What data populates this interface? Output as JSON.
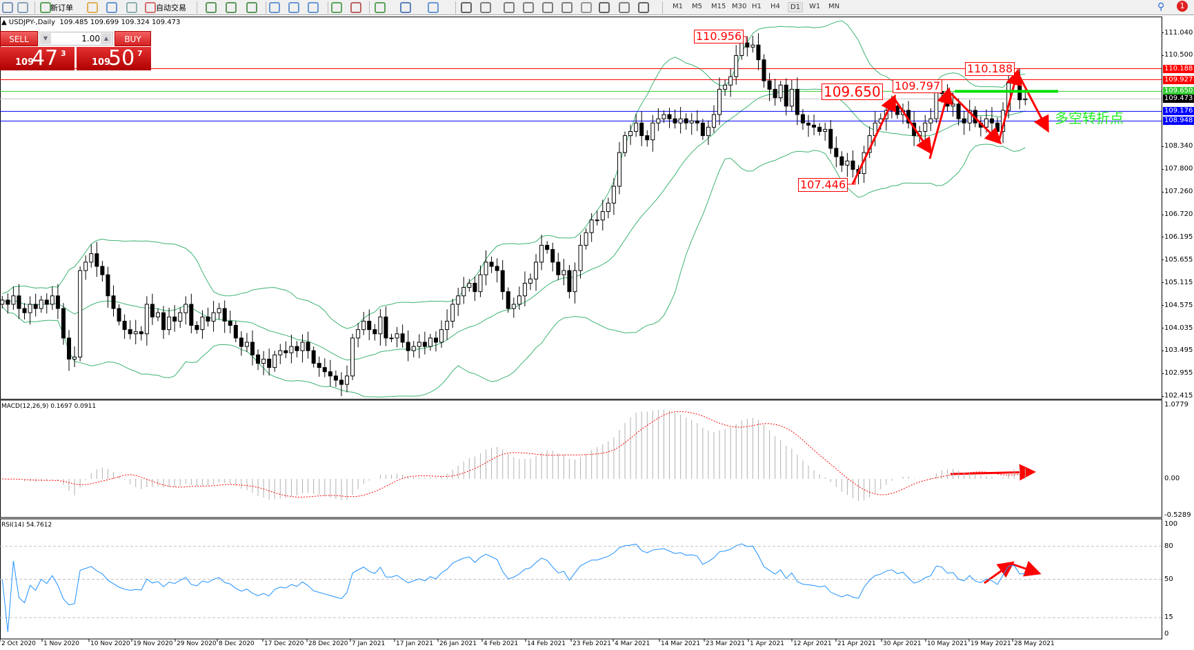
{
  "toolbar": {
    "new_order_label": "新订单",
    "auto_trade_label": "自动交易",
    "icons": [
      "chart-icon",
      "zoom-search-icon",
      "new-order-icon",
      "market-watch-icon",
      "navigator-icon",
      "signal-icon",
      "auto-trade-icon",
      "bar-chart-icon",
      "candlestick-icon",
      "line-chart-icon",
      "zoom-in-icon",
      "zoom-out-icon",
      "tile-windows-icon",
      "chart-shift-icon",
      "autoscroll-icon",
      "indicators-icon",
      "periods-icon",
      "templates-icon",
      "cursor-icon",
      "crosshair-icon",
      "vertical-line-icon",
      "horizontal-line-icon",
      "trendline-icon",
      "fibonacci-fan-icon",
      "fibonacci-icon",
      "text-icon",
      "text-label-icon",
      "arrows-icon"
    ],
    "timeframes": [
      "M1",
      "M5",
      "M15",
      "M30",
      "H1",
      "H4",
      "D1",
      "W1",
      "MN"
    ],
    "active_timeframe": "D1",
    "notification_count": "1"
  },
  "chart_header": {
    "symbol": "▲ USDJPY-,Daily",
    "ohlc": "109.485 109.699 109.324 109.473"
  },
  "trade_panel": {
    "sell_label": "SELL",
    "buy_label": "BUY",
    "lot": "1.00",
    "sell_price": {
      "prefix": "109",
      "big": "47",
      "point": "3"
    },
    "buy_price": {
      "prefix": "109",
      "big": "50",
      "point": "7"
    }
  },
  "chart_data": {
    "type": "candlestick",
    "symbol": "USDJPY-",
    "timeframe": "Daily",
    "price_axis": [
      "111.040",
      "110.500",
      "108.340",
      "107.800",
      "107.260",
      "106.720",
      "106.195",
      "105.655",
      "105.115",
      "104.575",
      "104.035",
      "103.495",
      "102.955",
      "102.415"
    ],
    "ylim": [
      102.415,
      111.04
    ],
    "x_ticks": [
      "2 Oct 2020",
      "1 Nov 2020",
      "10 Nov 2020",
      "19 Nov 2020",
      "29 Nov 2020",
      "8 Dec 2020",
      "17 Dec 2020",
      "28 Dec 2020",
      "7 Jan 2021",
      "17 Jan 2021",
      "26 Jan 2021",
      "4 Feb 2021",
      "14 Feb 2021",
      "23 Feb 2021",
      "4 Mar 2021",
      "14 Mar 2021",
      "23 Mar 2021",
      "1 Apr 2021",
      "12 Apr 2021",
      "21 Apr 2021",
      "30 Apr 2021",
      "10 May 2021",
      "19 May 2021",
      "28 May 2021"
    ],
    "first_open": 104.6,
    "close": [
      104.7,
      104.6,
      104.8,
      104.5,
      104.4,
      104.6,
      104.5,
      104.7,
      104.6,
      104.8,
      104.5,
      103.8,
      103.3,
      103.35,
      105.4,
      105.6,
      105.8,
      105.5,
      105.3,
      104.8,
      104.5,
      104.2,
      104.0,
      103.9,
      103.95,
      103.9,
      104.6,
      104.3,
      104.4,
      104.0,
      104.3,
      104.2,
      104.4,
      104.6,
      104.1,
      104.0,
      104.3,
      104.2,
      104.4,
      104.5,
      104.2,
      104.1,
      103.8,
      103.6,
      103.7,
      103.4,
      103.2,
      103.3,
      103.1,
      103.4,
      103.5,
      103.45,
      103.6,
      103.5,
      103.7,
      103.5,
      103.2,
      103.1,
      103.0,
      102.9,
      102.8,
      102.7,
      102.9,
      103.8,
      104.0,
      104.2,
      104.0,
      103.9,
      104.3,
      103.8,
      103.8,
      103.9,
      103.7,
      103.5,
      103.6,
      103.7,
      103.6,
      103.8,
      103.7,
      104.0,
      104.2,
      104.6,
      104.8,
      105.0,
      105.1,
      104.9,
      105.3,
      105.6,
      105.5,
      105.4,
      104.9,
      104.5,
      104.6,
      104.8,
      105.1,
      105.2,
      105.6,
      106.0,
      105.9,
      105.6,
      105.3,
      105.4,
      104.9,
      105.4,
      106.0,
      106.3,
      106.6,
      106.6,
      106.8,
      107.0,
      107.4,
      108.2,
      108.6,
      108.7,
      108.9,
      108.6,
      108.5,
      108.9,
      109.0,
      109.1,
      109.0,
      108.9,
      109.0,
      108.9,
      108.95,
      108.9,
      108.6,
      108.8,
      109.1,
      109.7,
      109.8,
      110.0,
      110.5,
      110.8,
      110.7,
      110.75,
      110.4,
      109.9,
      109.7,
      109.5,
      109.8,
      109.3,
      109.7,
      109.1,
      108.9,
      108.85,
      108.8,
      108.7,
      108.75,
      108.3,
      108.1,
      107.9,
      108.0,
      107.8,
      107.7,
      108.2,
      108.6,
      108.9,
      109.0,
      109.2,
      109.3,
      109.1,
      109.2,
      108.9,
      108.6,
      108.7,
      108.9,
      109.0,
      109.65,
      109.6,
      109.3,
      109.35,
      109.0,
      108.9,
      109.2,
      108.9,
      108.8,
      109.0,
      108.9,
      108.7,
      109.2,
      109.85,
      109.9,
      109.45,
      109.473
    ],
    "overlay": "Bollinger Bands",
    "band_color": "#3cb371",
    "horizontal_lines": [
      {
        "value": "110.188",
        "color": "#ff0000"
      },
      {
        "value": "109.927",
        "color": "#ff0000"
      },
      {
        "value": "109.650",
        "color": "#33cc33"
      },
      {
        "value": "109.473",
        "color": "#000000"
      },
      {
        "value": "109.176",
        "color": "#0000ff"
      },
      {
        "value": "108.948",
        "color": "#0000ff"
      }
    ],
    "annotations": [
      {
        "text": "110.956"
      },
      {
        "text": "109.650"
      },
      {
        "text": "109.797"
      },
      {
        "text": "110.188"
      },
      {
        "text": "107.446"
      }
    ],
    "annotation_text": "多空转折点",
    "macd": {
      "label": "MACD(12,26,9) 0.1697 0.0911",
      "axis": [
        "1.0779",
        "0.00",
        "-0.5289"
      ],
      "ylim": [
        -0.5289,
        1.0779
      ]
    },
    "rsi": {
      "label": "RSI(14) 54.7612",
      "axis": [
        "100",
        "80",
        "50",
        "15",
        "0"
      ],
      "levels": [
        80,
        50,
        15
      ],
      "color": "#1e90ff"
    }
  }
}
